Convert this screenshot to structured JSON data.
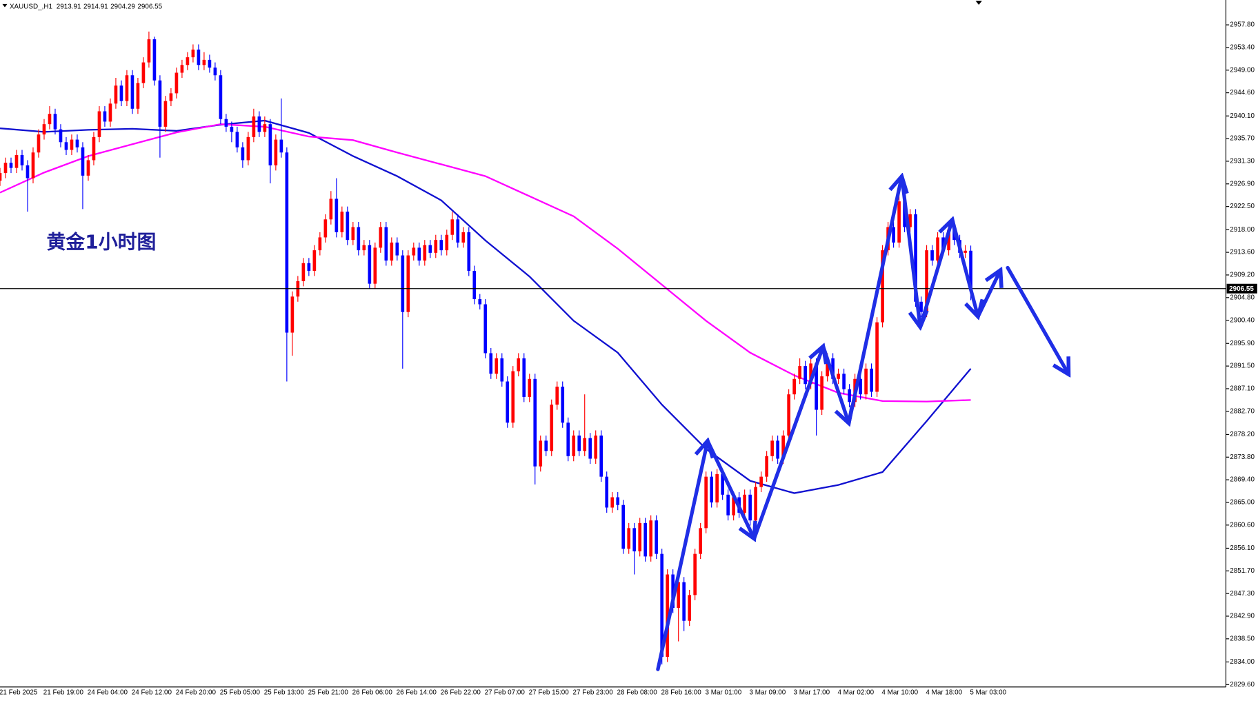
{
  "chart_data": {
    "type": "candlestick",
    "symbol": "XAUUSD_,H1",
    "annotation": "黄金1小时图",
    "up_color": "#ff0000",
    "down_color": "#0000ff",
    "price_line": true,
    "categories": [
      "21 Feb 2025",
      null,
      null,
      null,
      null,
      null,
      null,
      null,
      "21 Feb 19:00",
      null,
      null,
      null,
      null,
      null,
      null,
      null,
      "24 Feb 04:00",
      null,
      null,
      null,
      null,
      null,
      null,
      null,
      "24 Feb 12:00",
      null,
      null,
      null,
      null,
      null,
      null,
      null,
      "24 Feb 20:00",
      null,
      null,
      null,
      null,
      null,
      null,
      null,
      "25 Feb 05:00",
      null,
      null,
      null,
      null,
      null,
      null,
      null,
      "25 Feb 13:00",
      null,
      null,
      null,
      null,
      null,
      null,
      null,
      "25 Feb 21:00",
      null,
      null,
      null,
      null,
      null,
      null,
      null,
      "26 Feb 06:00",
      null,
      null,
      null,
      null,
      null,
      null,
      null,
      "26 Feb 14:00",
      null,
      null,
      null,
      null,
      null,
      null,
      null,
      "26 Feb 22:00",
      null,
      null,
      null,
      null,
      null,
      null,
      null,
      "27 Feb 07:00",
      null,
      null,
      null,
      null,
      null,
      null,
      null,
      "27 Feb 15:00",
      null,
      null,
      null,
      null,
      null,
      null,
      null,
      "27 Feb 23:00",
      null,
      null,
      null,
      null,
      null,
      null,
      null,
      "28 Feb 08:00",
      null,
      null,
      null,
      null,
      null,
      null,
      null,
      "28 Feb 16:00",
      null,
      null,
      null,
      null,
      null,
      null,
      null,
      "3 Mar 01:00",
      null,
      null,
      null,
      null,
      null,
      null,
      null,
      "3 Mar 09:00",
      null,
      null,
      null,
      null,
      null,
      null,
      null,
      "3 Mar 17:00",
      null,
      null,
      null,
      null,
      null,
      null,
      null,
      "4 Mar 02:00",
      null,
      null,
      null,
      null,
      null,
      null,
      null,
      "4 Mar 10:00",
      null,
      null,
      null,
      null,
      null,
      null,
      null,
      "4 Mar 18:00",
      null,
      null,
      null,
      null,
      null,
      null,
      null,
      "5 Mar 03:00"
    ],
    "open": [
      2927.5,
      2929,
      2931,
      2930,
      2932.5,
      2930.5,
      2928,
      2933,
      2936.5,
      2938.5,
      2940.5,
      2937.5,
      2935,
      2933.5,
      2935.5,
      2934,
      2928.5,
      2931.5,
      2936,
      2941,
      2939,
      2942.5,
      2946,
      2943,
      2948,
      2941.5,
      2946.5,
      2950.5,
      2955,
      2947,
      2938,
      2943,
      2944.5,
      2948.5,
      2950,
      2951.5,
      2953,
      2950,
      2951,
      2949.5,
      2948,
      2939.5,
      2938,
      2937,
      2934,
      2931.5,
      2936,
      2940,
      2937,
      2938.5,
      2930.5,
      2935.5,
      2933,
      2898,
      2905,
      2908,
      2911.5,
      2910,
      2914,
      2916.5,
      2920,
      2924,
      2917.5,
      2921.5,
      2916,
      2918.5,
      2914,
      2915,
      2907.5,
      2914.5,
      2918.5,
      2912,
      2915.5,
      2913,
      2902,
      2913,
      2914.5,
      2912,
      2915,
      2913.5,
      2916,
      2914,
      2917,
      2920,
      2915.5,
      2917.5,
      2910,
      2904.5,
      2903.5,
      2894,
      2890,
      2893,
      2888.5,
      2880.5,
      2890.5,
      2893,
      2885.5,
      2889,
      2872,
      2877,
      2875,
      2884,
      2887.5,
      2880.5,
      2874,
      2878,
      2875,
      2877.5,
      2873.5,
      2878,
      2870,
      2864,
      2866,
      2864.5,
      2856,
      2860,
      2855.5,
      2861,
      2854.5,
      2861.5,
      2855,
      2835,
      2851,
      2844.5,
      2849.5,
      2842,
      2847,
      2855,
      2860,
      2870,
      2865,
      2870.5,
      2866.5,
      2862.5,
      2866,
      2863,
      2866.5,
      2861.5,
      2868,
      2870,
      2874,
      2877,
      2873.5,
      2878,
      2886,
      2889,
      2891.5,
      2888,
      2892,
      2883,
      2889.5,
      2893,
      2889,
      2890,
      2887,
      2884.5,
      2889,
      2886,
      2891,
      2886.5,
      2900,
      2914,
      2918.5,
      2915.5,
      2923.5,
      2918.5,
      2921,
      2904,
      2902,
      2914,
      2912,
      2916.5,
      2914,
      2918,
      2916,
      2913.5,
      2913.91
    ],
    "high": [
      2930,
      2932,
      2932,
      2933.5,
      2933.5,
      2931.5,
      2934,
      2937.5,
      2939.5,
      2942,
      2941.5,
      2938.5,
      2936,
      2936.5,
      2936.5,
      2935,
      2932.5,
      2937,
      2942,
      2942,
      2943.5,
      2947.5,
      2947,
      2949,
      2949,
      2947.5,
      2951.5,
      2956.5,
      2955.5,
      2948,
      2944,
      2945.5,
      2949.5,
      2951,
      2952.5,
      2954,
      2954,
      2952.5,
      2952,
      2950.5,
      2949,
      2940.5,
      2939,
      2938,
      2935,
      2937,
      2941.5,
      2941,
      2940,
      2939.5,
      2936.5,
      2943.5,
      2934,
      2906,
      2909,
      2912.5,
      2912.5,
      2915,
      2917.5,
      2921,
      2925.5,
      2928,
      2922.5,
      2922.5,
      2919.5,
      2919.5,
      2916,
      2916,
      2915.5,
      2919.5,
      2919.5,
      2916.5,
      2916.5,
      2914,
      2914,
      2915.5,
      2915.5,
      2916,
      2916,
      2917,
      2917,
      2918,
      2921.5,
      2921,
      2918.5,
      2918.5,
      2911,
      2905.5,
      2904.5,
      2895,
      2894,
      2894,
      2889.5,
      2891.5,
      2894,
      2894,
      2890,
      2890,
      2878,
      2878,
      2885,
      2888.5,
      2888.5,
      2881.5,
      2879,
      2879,
      2886,
      2878.5,
      2879,
      2879,
      2871,
      2867,
      2867,
      2865.5,
      2861,
      2861,
      2862,
      2862,
      2862.5,
      2862.5,
      2856,
      2852,
      2852,
      2850.5,
      2850.5,
      2848,
      2856,
      2861,
      2871,
      2871,
      2871.5,
      2871.5,
      2867.5,
      2867,
      2867,
      2867.5,
      2867.5,
      2869,
      2871,
      2875,
      2878,
      2878,
      2879,
      2887,
      2890,
      2893,
      2892.5,
      2893,
      2893,
      2890.5,
      2894,
      2894,
      2891,
      2891,
      2888,
      2890,
      2890,
      2892,
      2892,
      2901,
      2915,
      2919.5,
      2919.5,
      2926.5,
      2924.5,
      2922,
      2922,
      2905,
      2915,
      2915,
      2917.5,
      2917.5,
      2919,
      2919,
      2917,
      2915,
      2914.91
    ],
    "low": [
      2926.5,
      2928,
      2929,
      2929,
      2929.5,
      2921.5,
      2927,
      2932,
      2935.5,
      2937.5,
      2936.5,
      2934,
      2932.5,
      2932.5,
      2933,
      2922,
      2927.5,
      2930.5,
      2935,
      2938,
      2938,
      2941.5,
      2942,
      2942,
      2940.5,
      2940.5,
      2945.5,
      2949.5,
      2946,
      2932,
      2937,
      2942,
      2943.5,
      2947.5,
      2949,
      2950.5,
      2949,
      2949,
      2948.5,
      2947,
      2938.5,
      2937,
      2935,
      2933,
      2930,
      2930.5,
      2935,
      2936,
      2936,
      2927,
      2929.5,
      2932,
      2888.5,
      2893.5,
      2904,
      2907,
      2909,
      2909,
      2913,
      2915.5,
      2919,
      2916.5,
      2916.5,
      2915,
      2915,
      2913,
      2913,
      2906.5,
      2906.5,
      2913.5,
      2911,
      2911,
      2912,
      2891,
      2901,
      2912,
      2911,
      2911,
      2912.5,
      2912.5,
      2913,
      2913,
      2916,
      2914.5,
      2914.5,
      2909,
      2903.5,
      2902.5,
      2893,
      2889,
      2889,
      2887.5,
      2879.5,
      2879.5,
      2889.5,
      2884.5,
      2884.5,
      2868.5,
      2871,
      2874,
      2874,
      2883,
      2879.5,
      2873,
      2873,
      2874,
      2874,
      2872.5,
      2872.5,
      2869,
      2863,
      2863,
      2863.5,
      2855,
      2855,
      2851,
      2854.5,
      2853.5,
      2853.5,
      2854,
      2833.5,
      2834,
      2843.5,
      2838,
      2840,
      2841,
      2846,
      2854,
      2859,
      2864,
      2864,
      2865.5,
      2861.5,
      2861.5,
      2862,
      2862,
      2860.5,
      2860.5,
      2867,
      2869,
      2873,
      2872.5,
      2872.5,
      2877,
      2885,
      2888,
      2887,
      2887,
      2878,
      2882,
      2888.5,
      2888,
      2888,
      2886,
      2883.5,
      2883.5,
      2885,
      2885,
      2885.5,
      2885.5,
      2899,
      2913,
      2914.5,
      2914.5,
      2917.5,
      2917.5,
      2903,
      2901,
      2901,
      2911,
      2911,
      2913,
      2913,
      2915,
      2912.5,
      2912.5,
      2904.29
    ],
    "close": [
      2929,
      2931,
      2930,
      2932.5,
      2930.5,
      2928,
      2933,
      2936.5,
      2938.5,
      2940.5,
      2937.5,
      2935,
      2933.5,
      2935.5,
      2934,
      2928.5,
      2931.5,
      2936,
      2941,
      2939,
      2942.5,
      2946,
      2943,
      2948,
      2941.5,
      2946.5,
      2950.5,
      2955,
      2947,
      2938,
      2943,
      2944.5,
      2948.5,
      2950,
      2951.5,
      2953,
      2950,
      2951,
      2949.5,
      2948,
      2939.5,
      2938,
      2937,
      2934,
      2931.5,
      2936,
      2940,
      2937,
      2938.5,
      2930.5,
      2935.5,
      2933,
      2898,
      2905,
      2908,
      2911.5,
      2910,
      2914,
      2916.5,
      2920,
      2924,
      2917.5,
      2921.5,
      2916,
      2918.5,
      2914,
      2915,
      2907.5,
      2914.5,
      2918.5,
      2912,
      2915.5,
      2913,
      2902,
      2913,
      2914.5,
      2912,
      2915,
      2913.5,
      2916,
      2914,
      2917,
      2920,
      2915.5,
      2917.5,
      2910,
      2904.5,
      2903.5,
      2894,
      2890,
      2893,
      2888.5,
      2880.5,
      2890.5,
      2893,
      2885.5,
      2889,
      2872,
      2877,
      2875,
      2884,
      2887.5,
      2880.5,
      2874,
      2878,
      2875,
      2877.5,
      2873.5,
      2878,
      2870,
      2864,
      2866,
      2864.5,
      2856,
      2860,
      2855.5,
      2861,
      2854.5,
      2861.5,
      2855,
      2835,
      2851,
      2844.5,
      2849.5,
      2842,
      2847,
      2855,
      2860,
      2870,
      2865,
      2870.5,
      2866.5,
      2862.5,
      2866,
      2863,
      2866.5,
      2861.5,
      2868,
      2870,
      2874,
      2877,
      2873.5,
      2878,
      2886,
      2889,
      2891.5,
      2888,
      2892,
      2883,
      2889.5,
      2893,
      2889,
      2890,
      2887,
      2884.5,
      2889,
      2886,
      2891,
      2886.5,
      2900,
      2914,
      2918.5,
      2915.5,
      2923.5,
      2918.5,
      2921,
      2904,
      2902,
      2914,
      2912,
      2916.5,
      2914,
      2918,
      2916,
      2913.5,
      2913.91,
      2906.55
    ],
    "indicators": [
      {
        "color": "#1010d0",
        "values": [
          2937.7,
          2937.0,
          2937.4,
          2937.6,
          2937.2,
          2938.4,
          2939.2,
          2936.8,
          2932.3,
          2928.4,
          2923.7,
          2915.9,
          2908.9,
          2900.3,
          2894.1,
          2884.0,
          2875.4,
          2869.2,
          2866.8,
          2868.4,
          2870.9,
          2880.8,
          2891.0
        ]
      },
      {
        "color": "#ff00ff",
        "values": [
          2925.2,
          2929.1,
          2932.3,
          2934.6,
          2936.9,
          2938.5,
          2938.0,
          2936.1,
          2935.4,
          2933.0,
          2930.7,
          2928.4,
          2924.5,
          2920.6,
          2914.3,
          2907.3,
          2900.3,
          2894.1,
          2889.7,
          2886.3,
          2884.7,
          2884.6,
          2884.9
        ]
      }
    ],
    "ylim": [
      2829.14,
      2962.63
    ],
    "yticks": [
      {
        "value": 2957.8,
        "label": "2957.80"
      },
      {
        "value": 2953.4,
        "label": "2953.40"
      },
      {
        "value": 2949,
        "label": "2949.00"
      },
      {
        "value": 2944.6,
        "label": "2944.60"
      },
      {
        "value": 2940.1,
        "label": "2940.10"
      },
      {
        "value": 2935.7,
        "label": "2935.70"
      },
      {
        "value": 2931.3,
        "label": "2931.30"
      },
      {
        "value": 2926.9,
        "label": "2926.90"
      },
      {
        "value": 2922.5,
        "label": "2922.50"
      },
      {
        "value": 2918,
        "label": "2918.00"
      },
      {
        "value": 2913.6,
        "label": "2913.60"
      },
      {
        "value": 2909.2,
        "label": "2909.20"
      },
      {
        "value": 2904.8,
        "label": "2904.80"
      },
      {
        "value": 2900.4,
        "label": "2900.40"
      },
      {
        "value": 2895.9,
        "label": "2895.90"
      },
      {
        "value": 2891.5,
        "label": "2891.50"
      },
      {
        "value": 2887.1,
        "label": "2887.10"
      },
      {
        "value": 2882.7,
        "label": "2882.70"
      },
      {
        "value": 2878.2,
        "label": "2878.20"
      },
      {
        "value": 2873.8,
        "label": "2873.80"
      },
      {
        "value": 2869.4,
        "label": "2869.40"
      },
      {
        "value": 2865,
        "label": "2865.00"
      },
      {
        "value": 2860.6,
        "label": "2860.60"
      },
      {
        "value": 2856.1,
        "label": "2856.10"
      },
      {
        "value": 2851.7,
        "label": "2851.70"
      },
      {
        "value": 2847.3,
        "label": "2847.30"
      },
      {
        "value": 2842.9,
        "label": "2842.90"
      },
      {
        "value": 2838.5,
        "label": "2838.50"
      },
      {
        "value": 2834,
        "label": "2834.00"
      },
      {
        "value": 2829.6,
        "label": "2829.60"
      }
    ]
  }
}
